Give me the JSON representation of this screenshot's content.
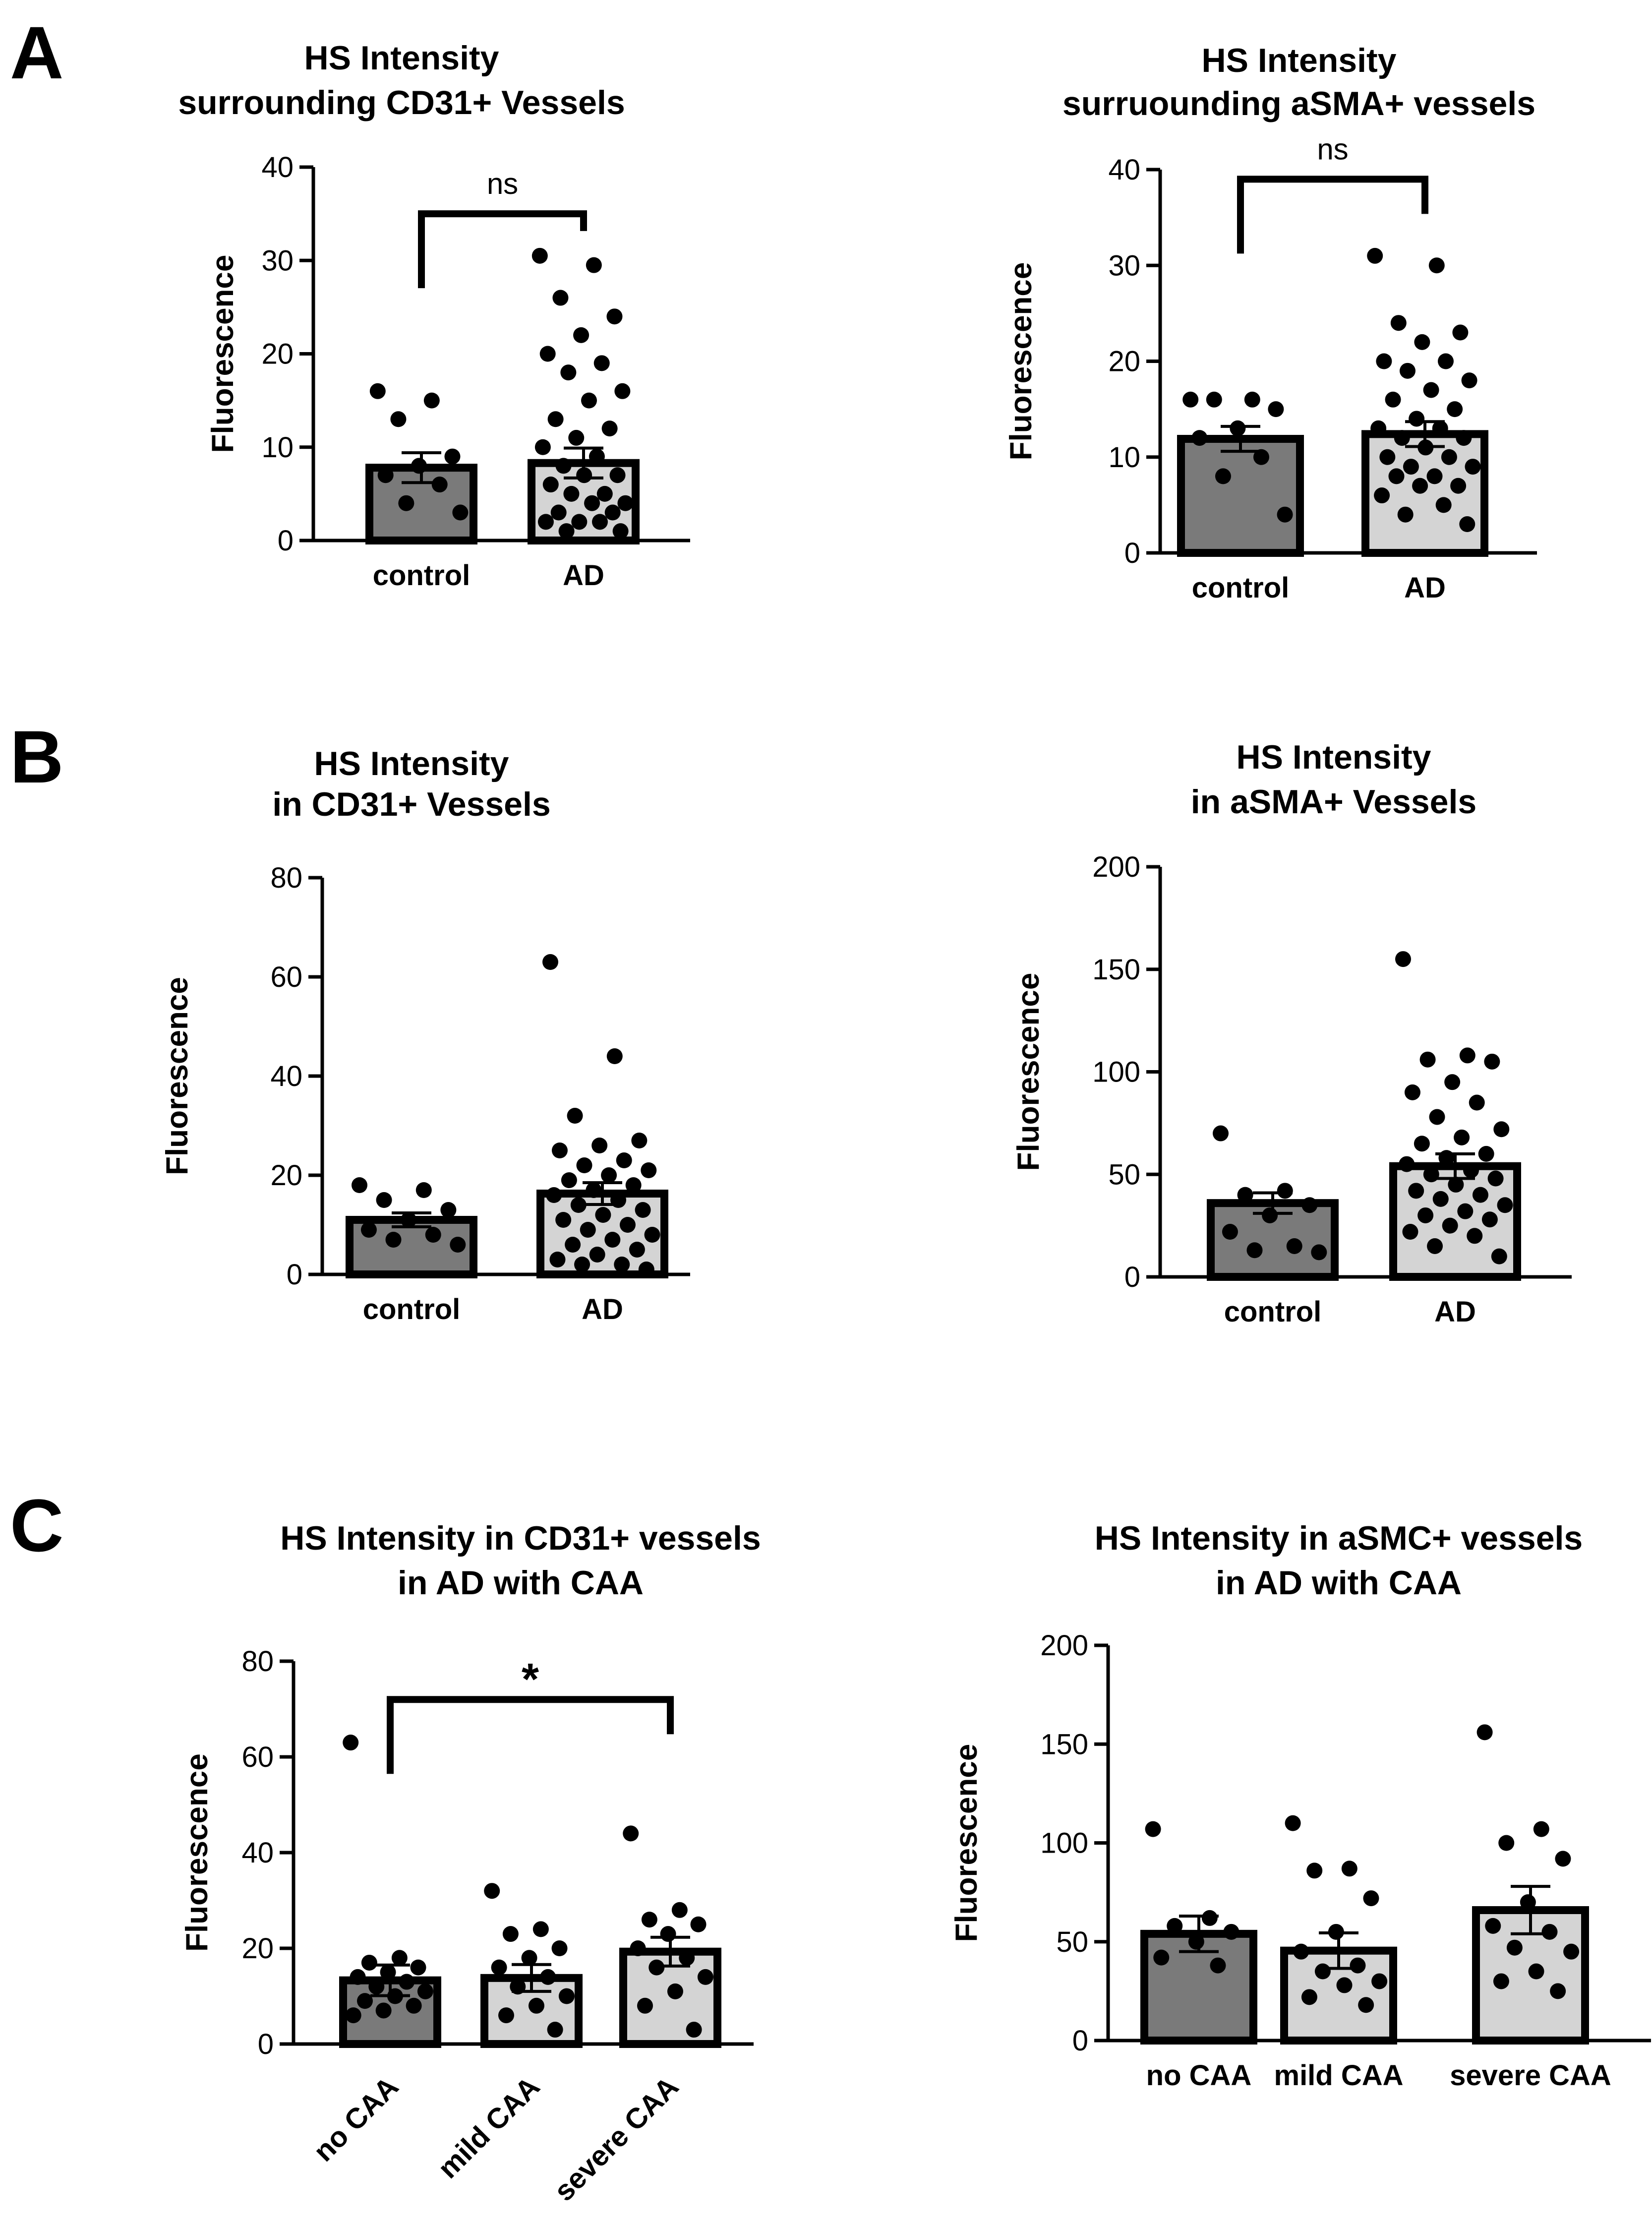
{
  "panel_letters": [
    "A",
    "B",
    "C"
  ],
  "colors": {
    "dark_bar": "#7a7a7a",
    "light_bar": "#d4d4d4",
    "ink": "#000000"
  },
  "chart_data": [
    {
      "id": "A1",
      "panel": "A",
      "type": "bar",
      "title": [
        "HS Intensity",
        "surrounding CD31+ Vessels"
      ],
      "ylabel": "Fluorescence",
      "xlabel": "",
      "ylim": [
        0,
        40
      ],
      "yticks": [
        0,
        10,
        20,
        30,
        40
      ],
      "categories": [
        "control",
        "AD"
      ],
      "values": [
        7.8,
        8.3
      ],
      "errors": [
        1.6,
        1.6
      ],
      "bar_fills": [
        "dark",
        "light"
      ],
      "points": [
        [
          16,
          15,
          13,
          9,
          8,
          7,
          6,
          4,
          3
        ],
        [
          30.5,
          29.5,
          26,
          24,
          22,
          20,
          19,
          18,
          16,
          15,
          13,
          12,
          11,
          10,
          9,
          8,
          7,
          7,
          6,
          5,
          5,
          4,
          4,
          3,
          3,
          2,
          2,
          2,
          1,
          1
        ]
      ],
      "significance": [
        {
          "between": [
            0,
            1
          ],
          "label": "ns",
          "y": 35
        }
      ]
    },
    {
      "id": "A2",
      "panel": "A",
      "type": "bar",
      "title": [
        "HS Intensity",
        "surruounding aSMA+ vessels"
      ],
      "ylabel": "Fluorescence",
      "xlabel": "",
      "ylim": [
        0,
        40
      ],
      "yticks": [
        0,
        10,
        20,
        30,
        40
      ],
      "categories": [
        "control",
        "AD"
      ],
      "values": [
        11.9,
        12.4
      ],
      "errors": [
        1.3,
        1.3
      ],
      "bar_fills": [
        "dark",
        "light"
      ],
      "points": [
        [
          16,
          16,
          16,
          15,
          13,
          12,
          10,
          8,
          4
        ],
        [
          31,
          30,
          24,
          23,
          22,
          20,
          20,
          19,
          18,
          17,
          16,
          15,
          14,
          13,
          13,
          12,
          12,
          11,
          10,
          10,
          9,
          9,
          8,
          8,
          7,
          7,
          6,
          5,
          4,
          3
        ]
      ],
      "significance": [
        {
          "between": [
            0,
            1
          ],
          "label": "ns",
          "y": 39
        }
      ]
    },
    {
      "id": "B1",
      "panel": "B",
      "type": "bar",
      "title": [
        "HS Intensity",
        "in CD31+ Vessels"
      ],
      "ylabel": "Fluorescence",
      "xlabel": "",
      "ylim": [
        0,
        80
      ],
      "yticks": [
        0,
        20,
        40,
        60,
        80
      ],
      "categories": [
        "control",
        "AD"
      ],
      "values": [
        11,
        16.3
      ],
      "errors": [
        1.4,
        2.2
      ],
      "bar_fills": [
        "dark",
        "light"
      ],
      "points": [
        [
          18,
          17,
          15,
          13,
          11,
          9,
          8,
          7,
          6
        ],
        [
          63,
          44,
          32,
          27,
          26,
          25,
          23,
          22,
          21,
          20,
          19,
          18,
          17,
          16,
          15,
          14,
          13,
          12,
          11,
          10,
          9,
          8,
          7,
          6,
          5,
          4,
          3,
          2,
          2,
          1
        ]
      ],
      "significance": []
    },
    {
      "id": "B2",
      "panel": "B",
      "type": "bar",
      "title": [
        "HS Intensity",
        "in aSMA+ Vessels"
      ],
      "ylabel": "Fluorescence",
      "xlabel": "",
      "ylim": [
        0,
        200
      ],
      "yticks": [
        0,
        50,
        100,
        150,
        200
      ],
      "categories": [
        "control",
        "AD"
      ],
      "values": [
        36,
        54
      ],
      "errors": [
        5,
        6
      ],
      "bar_fills": [
        "dark",
        "light"
      ],
      "points": [
        [
          70,
          42,
          40,
          35,
          30,
          22,
          15,
          13,
          12
        ],
        [
          155,
          108,
          106,
          105,
          95,
          90,
          85,
          78,
          72,
          68,
          65,
          60,
          58,
          55,
          52,
          50,
          48,
          45,
          42,
          40,
          38,
          35,
          32,
          30,
          28,
          25,
          22,
          20,
          15,
          10
        ]
      ],
      "significance": []
    },
    {
      "id": "C1",
      "panel": "C",
      "type": "bar",
      "title": [
        "HS Intensity in CD31+ vessels",
        "in AD with CAA"
      ],
      "ylabel": "Fluorescence",
      "xlabel": "",
      "ylim": [
        0,
        80
      ],
      "yticks": [
        0,
        20,
        40,
        60,
        80
      ],
      "categories": [
        "no CAA",
        "mild CAA",
        "severe CAA"
      ],
      "values": [
        13.3,
        13.8,
        19.3
      ],
      "errors": [
        3.2,
        2.8,
        3.0
      ],
      "bar_fills": [
        "dark",
        "light",
        "light"
      ],
      "points": [
        [
          63,
          18,
          17,
          16,
          15,
          14,
          13,
          12,
          11,
          10,
          9,
          8,
          7,
          6
        ],
        [
          32,
          24,
          23,
          20,
          18,
          16,
          14,
          12,
          10,
          8,
          6,
          3
        ],
        [
          44,
          28,
          26,
          25,
          23,
          20,
          18,
          16,
          14,
          11,
          8,
          3
        ]
      ],
      "significance": [
        {
          "between": [
            0,
            2
          ],
          "label": "*",
          "y": 72
        }
      ]
    },
    {
      "id": "C2",
      "panel": "C",
      "type": "bar",
      "title": [
        "HS Intensity in aSMC+ vessels",
        "in AD with CAA"
      ],
      "ylabel": "Fluorescence",
      "xlabel": "",
      "ylim": [
        0,
        200
      ],
      "yticks": [
        0,
        50,
        100,
        150,
        200
      ],
      "categories": [
        "no CAA",
        "mild CAA",
        "severe CAA"
      ],
      "values": [
        54,
        45.5,
        66
      ],
      "errors": [
        9,
        9,
        12
      ],
      "bar_fills": [
        "dark",
        "light",
        "light"
      ],
      "points": [
        [
          107,
          62,
          58,
          55,
          50,
          42,
          38
        ],
        [
          110,
          87,
          86,
          72,
          55,
          45,
          38,
          35,
          30,
          28,
          22,
          18
        ],
        [
          156,
          107,
          100,
          92,
          70,
          58,
          55,
          47,
          45,
          35,
          30,
          25
        ]
      ],
      "significance": []
    }
  ]
}
